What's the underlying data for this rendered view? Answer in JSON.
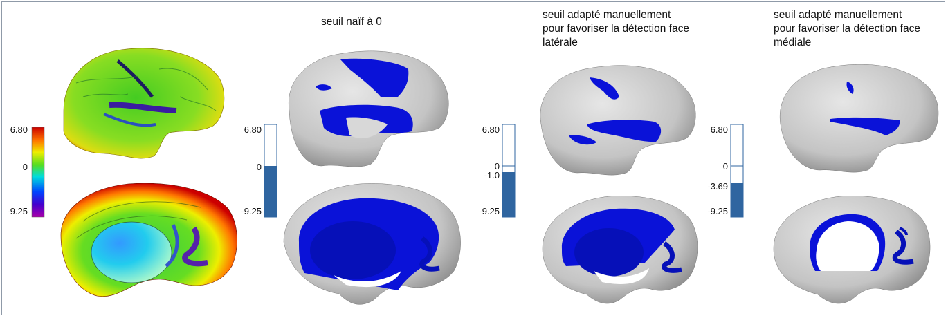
{
  "panels": [
    {
      "id": "colormap",
      "title": "",
      "scale": {
        "top": "6.80",
        "zero": "0",
        "bottom": "-9.25"
      }
    },
    {
      "id": "naive",
      "title": "seuil naïf à 0",
      "scale": {
        "top": "6.80",
        "zero": "0",
        "bottom": "-9.25"
      }
    },
    {
      "id": "lateral",
      "title": "seuil adapté manuellement\npour favoriser la détection face\nlatérale",
      "scale": {
        "top": "6.80",
        "zero": "0",
        "threshold": "-1.0",
        "bottom": "-9.25"
      }
    },
    {
      "id": "medial",
      "title": "seuil adapté manuellement\npour favoriser la détection face\nmédiale",
      "scale": {
        "top": "6.80",
        "zero": "0",
        "threshold": "-3.69",
        "bottom": "-9.25"
      }
    }
  ],
  "colors": {
    "highlight": "#0a12d8",
    "cortex": "#c9c9c9",
    "scale_fill": "#2f65a0",
    "frame": "#8f9aa8"
  }
}
